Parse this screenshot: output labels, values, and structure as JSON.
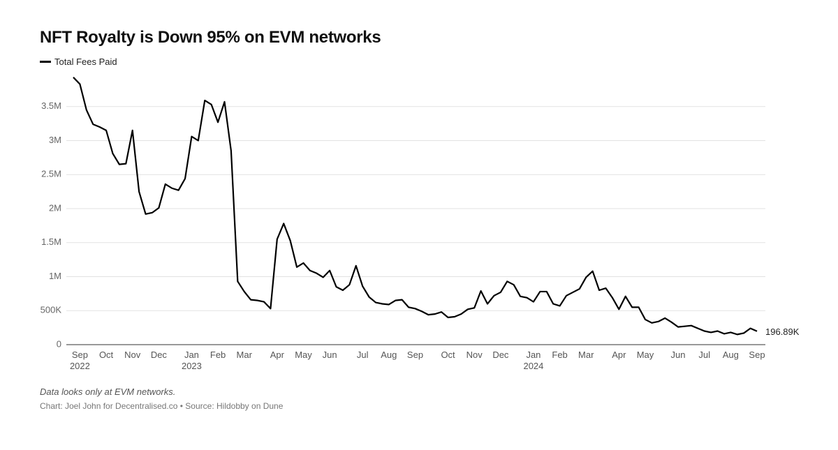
{
  "chart_data": {
    "type": "line",
    "title": "NFT Royalty is Down 95% on EVM networks",
    "caption": "Data looks only at EVM networks.",
    "source": "Chart: Joel John for Decentralised.co • Source: Hildobby on Dune",
    "categories": [
      null,
      "Sep\n2022",
      null,
      null,
      null,
      "Oct",
      null,
      null,
      null,
      "Nov",
      null,
      null,
      null,
      "Dec",
      null,
      null,
      null,
      null,
      "Jan\n2023",
      null,
      null,
      null,
      "Feb",
      null,
      null,
      null,
      "Mar",
      null,
      null,
      null,
      null,
      "Apr",
      null,
      null,
      null,
      "May",
      null,
      null,
      null,
      "Jun",
      null,
      null,
      null,
      null,
      "Jul",
      null,
      null,
      null,
      "Aug",
      null,
      null,
      null,
      "Sep",
      null,
      null,
      null,
      null,
      "Oct",
      null,
      null,
      null,
      "Nov",
      null,
      null,
      null,
      "Dec",
      null,
      null,
      null,
      null,
      "Jan\n2024",
      null,
      null,
      null,
      "Feb",
      null,
      null,
      null,
      "Mar",
      null,
      null,
      null,
      null,
      "Apr",
      null,
      null,
      null,
      "May",
      null,
      null,
      null,
      null,
      "Jun",
      null,
      null,
      null,
      "Jul",
      null,
      null,
      null,
      "Aug",
      null,
      null,
      null,
      "Sep"
    ],
    "series": [
      {
        "name": "Total Fees Paid",
        "color": "#000000",
        "values": [
          3930000,
          3830000,
          3450000,
          3240000,
          3200000,
          3150000,
          2810000,
          2650000,
          2660000,
          3150000,
          2250000,
          1920000,
          1940000,
          2010000,
          2360000,
          2300000,
          2270000,
          2440000,
          3060000,
          3000000,
          3590000,
          3530000,
          3270000,
          3570000,
          2850000,
          930000,
          780000,
          660000,
          650000,
          630000,
          530000,
          1550000,
          1780000,
          1530000,
          1140000,
          1200000,
          1090000,
          1050000,
          990000,
          1090000,
          850000,
          800000,
          880000,
          1160000,
          860000,
          700000,
          620000,
          600000,
          590000,
          650000,
          660000,
          550000,
          530000,
          490000,
          440000,
          450000,
          480000,
          400000,
          410000,
          450000,
          520000,
          540000,
          790000,
          600000,
          720000,
          770000,
          930000,
          880000,
          710000,
          690000,
          630000,
          780000,
          780000,
          600000,
          570000,
          720000,
          770000,
          820000,
          990000,
          1080000,
          800000,
          830000,
          690000,
          520000,
          710000,
          550000,
          550000,
          370000,
          320000,
          340000,
          390000,
          330000,
          260000,
          270000,
          280000,
          240000,
          200000,
          180000,
          200000,
          160000,
          180000,
          150000,
          170000,
          240000,
          196890
        ],
        "value_labels": [
          null,
          null,
          null,
          null,
          null,
          null,
          null,
          null,
          null,
          null,
          null,
          null,
          null,
          null,
          null,
          null,
          null,
          null,
          null,
          null,
          null,
          null,
          null,
          null,
          null,
          null,
          null,
          null,
          null,
          null,
          null,
          null,
          null,
          null,
          null,
          null,
          null,
          null,
          null,
          null,
          null,
          null,
          null,
          null,
          null,
          null,
          null,
          null,
          null,
          null,
          null,
          null,
          null,
          null,
          null,
          null,
          null,
          null,
          null,
          null,
          null,
          null,
          null,
          null,
          null,
          null,
          null,
          null,
          null,
          null,
          null,
          null,
          null,
          null,
          null,
          null,
          null,
          null,
          null,
          null,
          null,
          null,
          null,
          null,
          null,
          null,
          null,
          null,
          null,
          null,
          null,
          null,
          null,
          null,
          null,
          null,
          null,
          null,
          null,
          null,
          null,
          null,
          null,
          null,
          "196.89K"
        ]
      }
    ],
    "ylim": [
      0,
      4000000
    ],
    "yticks": [
      0,
      {
        "value": 500000,
        "label": "500K"
      },
      {
        "value": 1000000,
        "label": "1M"
      },
      {
        "value": 1500000,
        "label": "1.5M"
      },
      {
        "value": 2000000,
        "label": "2M"
      },
      {
        "value": 2500000,
        "label": "2.5M"
      },
      {
        "value": 3000000,
        "label": "3M"
      },
      {
        "value": 3500000,
        "label": "3.5M"
      }
    ],
    "grid": true
  }
}
